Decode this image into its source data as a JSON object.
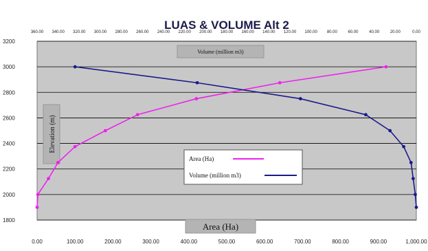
{
  "chart_data": {
    "type": "line",
    "title": "LUAS & VOLUME Alt 2",
    "top_axis_label": "Volume  (million  m3)",
    "bottom_axis_label": "Area (Ha)",
    "ylabel": "Elevation (m)",
    "ylim": [
      1800,
      3200
    ],
    "y_ticks": [
      "1800",
      "2000",
      "2200",
      "2400",
      "2600",
      "2800",
      "3000",
      "3200"
    ],
    "x_bottom_lim": [
      0,
      1000
    ],
    "x_bottom_ticks": [
      "0.00",
      "100.00",
      "200.00",
      "300.00",
      "400.00",
      "500.00",
      "600.00",
      "700.00",
      "800.00",
      "900.00",
      "1,000.00"
    ],
    "x_top_lim": [
      0,
      360
    ],
    "x_top_reversed": true,
    "x_top_ticks": [
      "360.00",
      "340.00",
      "320.00",
      "300.00",
      "280.00",
      "260.00",
      "240.00",
      "220.00",
      "200.00",
      "180.00",
      "160.00",
      "140.00",
      "120.00",
      "100.00",
      "80.00",
      "60.00",
      "40.00",
      "20.00",
      "0.00"
    ],
    "grid": true,
    "legend": "center-bottom",
    "series": [
      {
        "name": "Area (Ha)",
        "color": "#ee22ee",
        "axis": "bottom",
        "points": [
          [
            0,
            1900
          ],
          [
            2,
            2000
          ],
          [
            30,
            2125
          ],
          [
            55,
            2250
          ],
          [
            100,
            2375
          ],
          [
            180,
            2500
          ],
          [
            265,
            2625
          ],
          [
            420,
            2750
          ],
          [
            640,
            2875
          ],
          [
            920,
            3000
          ]
        ]
      },
      {
        "name": "Volume  (million  m3)",
        "color": "#1a1a8c",
        "axis": "top",
        "points": [
          [
            0,
            1900
          ],
          [
            1,
            2000
          ],
          [
            3,
            2125
          ],
          [
            5,
            2250
          ],
          [
            12,
            2375
          ],
          [
            25,
            2500
          ],
          [
            48,
            2625
          ],
          [
            110,
            2750
          ],
          [
            208,
            2875
          ],
          [
            324,
            3000
          ]
        ]
      }
    ]
  }
}
